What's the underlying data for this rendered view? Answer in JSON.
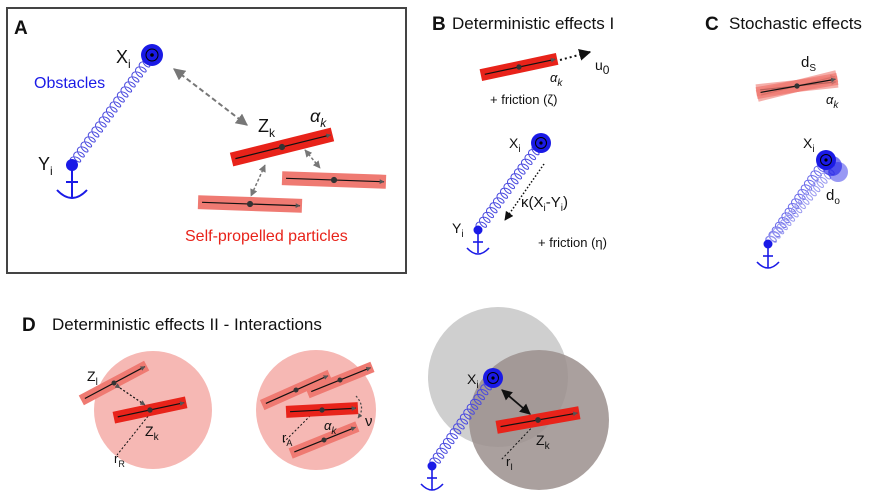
{
  "panels": {
    "A": {
      "letter": "A",
      "obstacles_label": "Obstacles",
      "particles_label": "Self-propelled particles",
      "x": "X",
      "x_sub": "i",
      "y": "Y",
      "y_sub": "i",
      "z": "Z",
      "z_sub": "k",
      "alpha": "α",
      "alpha_sub": "k"
    },
    "B": {
      "letter": "B",
      "title": "Deterministic effects I",
      "u": "u",
      "u_sub": "0",
      "alpha": "α",
      "alpha_sub": "k",
      "friction1": "+ friction (ζ)",
      "x": "X",
      "x_sub": "i",
      "y": "Y",
      "y_sub": "i",
      "force_label": "κ(X",
      "force_sub1": "i",
      "force_mid": "-Y",
      "force_sub2": "i",
      "force_end": ")",
      "friction2": "+ friction (η)"
    },
    "C": {
      "letter": "C",
      "title": "Stochastic effects",
      "d": "d",
      "ds_sub": "S",
      "alpha": "α",
      "alpha_sub": "k",
      "x": "X",
      "x_sub": "i",
      "do_sub": "o"
    },
    "D": {
      "letter": "D",
      "title": "Deterministic effects II - Interactions",
      "z": "Z",
      "zl_sub": "l",
      "zk_sub": "k",
      "r": "r",
      "rR_sub": "R",
      "rA_sub": "A",
      "rI_sub": "I",
      "alpha": "α",
      "alpha_sub": "k",
      "nu": "ν",
      "x": "X",
      "x_sub": "i"
    }
  },
  "colors": {
    "particle_red": "#e8231a",
    "particle_light": "#ef7a72",
    "obstacle_blue": "#1a1ae6",
    "repulsion_zone": "#f6b8b4",
    "interaction_zone_light": "#cfcfcf",
    "interaction_zone_dark": "#9b8f8d",
    "frame": "#444444"
  }
}
